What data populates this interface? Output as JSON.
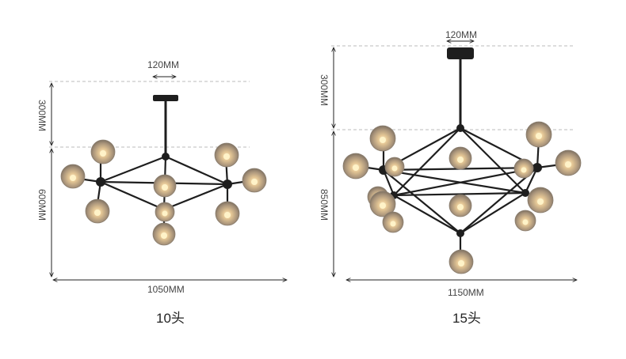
{
  "left_variant": {
    "canopy_width": "120MM",
    "rod_height": "300MM",
    "body_height": "600MM",
    "width": "1050MM",
    "caption": "10头"
  },
  "right_variant": {
    "canopy_width": "120MM",
    "rod_height": "300MM",
    "body_height": "850MM",
    "width": "1150MM",
    "caption": "15头"
  },
  "colors": {
    "frame": "#1e1e1e",
    "globe": "#b9a58a",
    "bulb": "#fff3c8",
    "dimension_line": "#222222",
    "dashed_guide": "#bbbbbb"
  }
}
